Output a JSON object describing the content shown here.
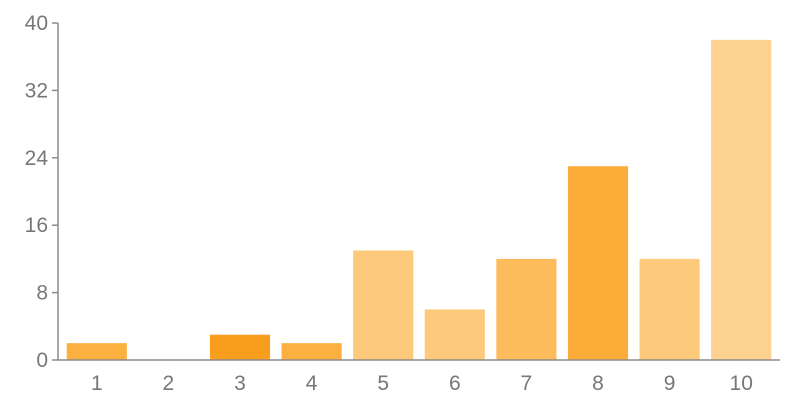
{
  "chart_data": {
    "type": "bar",
    "title": "",
    "xlabel": "",
    "ylabel": "",
    "categories": [
      "1",
      "2",
      "3",
      "4",
      "5",
      "6",
      "7",
      "8",
      "9",
      "10"
    ],
    "values": [
      2,
      0,
      3,
      2,
      13,
      6,
      12,
      23,
      12,
      38
    ],
    "colors": [
      "#fbb040",
      "#fbb040",
      "#f99d1c",
      "#fbb040",
      "#fdca7c",
      "#fdca7c",
      "#fdbc5c",
      "#fbac39",
      "#fdca7c",
      "#fdd190"
    ],
    "ylim": [
      0,
      40
    ],
    "yticks": [
      "0",
      "8",
      "16",
      "24",
      "32",
      "40"
    ],
    "grid": false,
    "legend": "none"
  }
}
